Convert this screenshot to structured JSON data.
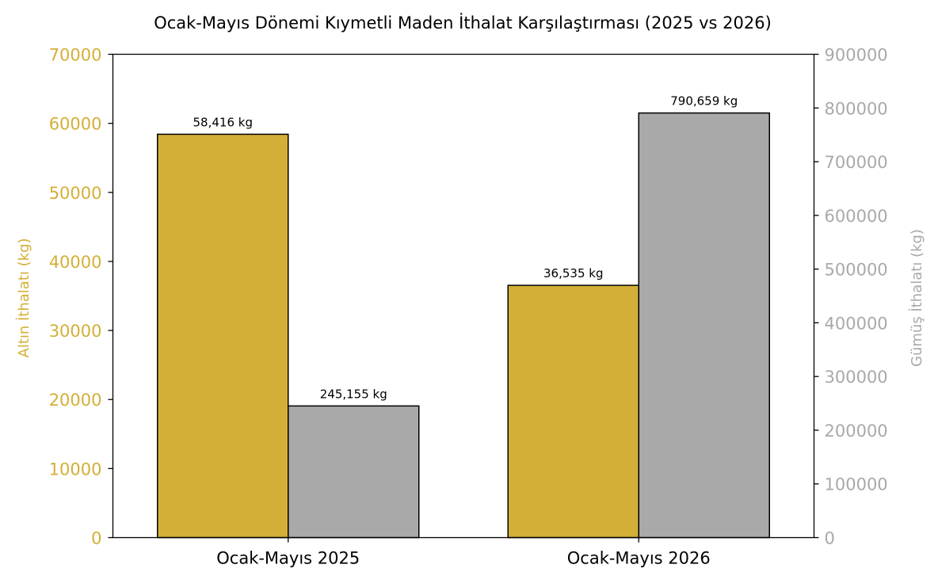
{
  "chart_data": {
    "type": "bar",
    "title": "Ocak-Mayıs Dönemi Kıymetli Maden İthalat Karşılaştırması (2025 vs 2026)",
    "categories": [
      "Ocak-Mayıs 2025",
      "Ocak-Mayıs 2026"
    ],
    "series": [
      {
        "values": [
          58416,
          36535
        ],
        "labels": [
          "58,416 kg",
          "36,535 kg"
        ],
        "axis": "left",
        "color": "#D4AF37"
      },
      {
        "values": [
          245155,
          790659
        ],
        "labels": [
          "245,155 kg",
          "790,659 kg"
        ],
        "axis": "right",
        "color": "#A9A9A9"
      }
    ],
    "ylabel": "Altın İthalatı (kg)",
    "ylabel_right": "Gümüş İthalatı (kg)",
    "ylim": [
      0,
      70000
    ],
    "ylim_right": [
      0,
      900000
    ],
    "yticks": [
      "0",
      "10000",
      "20000",
      "30000",
      "40000",
      "50000",
      "60000",
      "70000"
    ],
    "yticks_right": [
      "0",
      "100000",
      "200000",
      "300000",
      "400000",
      "500000",
      "600000",
      "700000",
      "800000",
      "900000"
    ],
    "left_axis_color": "#D4AF37",
    "right_axis_color": "#A9A9A9",
    "grid": false,
    "legend": "none"
  }
}
